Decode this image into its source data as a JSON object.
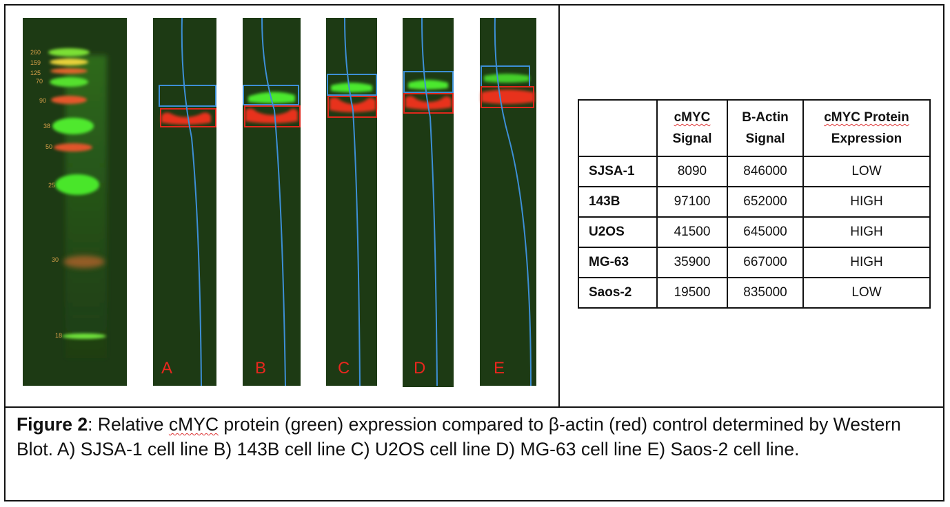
{
  "ladder": {
    "markers": [
      "260",
      "159",
      "125",
      "70",
      "90",
      "38",
      "50",
      "25",
      "30",
      "18"
    ]
  },
  "lanes": [
    {
      "label": "A"
    },
    {
      "label": "B"
    },
    {
      "label": "C"
    },
    {
      "label": "D"
    },
    {
      "label": "E"
    }
  ],
  "table": {
    "headers": [
      {
        "line1": "cMYC",
        "line2": "Signal"
      },
      {
        "line1": "B-Actin",
        "line2": "Signal"
      },
      {
        "line1": "cMYC Protein",
        "line2": "Expression"
      }
    ],
    "rows": [
      {
        "cell_line": "SJSA-1",
        "cmyc": "8090",
        "bactin": "846000",
        "expression": "LOW"
      },
      {
        "cell_line": "143B",
        "cmyc": "97100",
        "bactin": "652000",
        "expression": "HIGH"
      },
      {
        "cell_line": "U2OS",
        "cmyc": "41500",
        "bactin": "645000",
        "expression": "HIGH"
      },
      {
        "cell_line": "MG-63",
        "cmyc": "35900",
        "bactin": "667000",
        "expression": "HIGH"
      },
      {
        "cell_line": "Saos-2",
        "cmyc": "19500",
        "bactin": "835000",
        "expression": "LOW"
      }
    ]
  },
  "caption": {
    "figure_label": "Figure 2",
    "text_a": ": Relative ",
    "text_cmyc": "cMYC",
    "text_b": " protein (green) expression compared to β-actin (red) control determined by Western Blot. A) SJSA-1 cell line B) 143B cell line C) U2OS cell line D) MG-63 cell line E) Saos-2 cell line."
  },
  "colors": {
    "blot_background": "#1d3a14",
    "green_band": "#3ee02a",
    "red_band": "#e8321c",
    "blue_box": "#3d8fd6",
    "red_box": "#e0281c"
  }
}
